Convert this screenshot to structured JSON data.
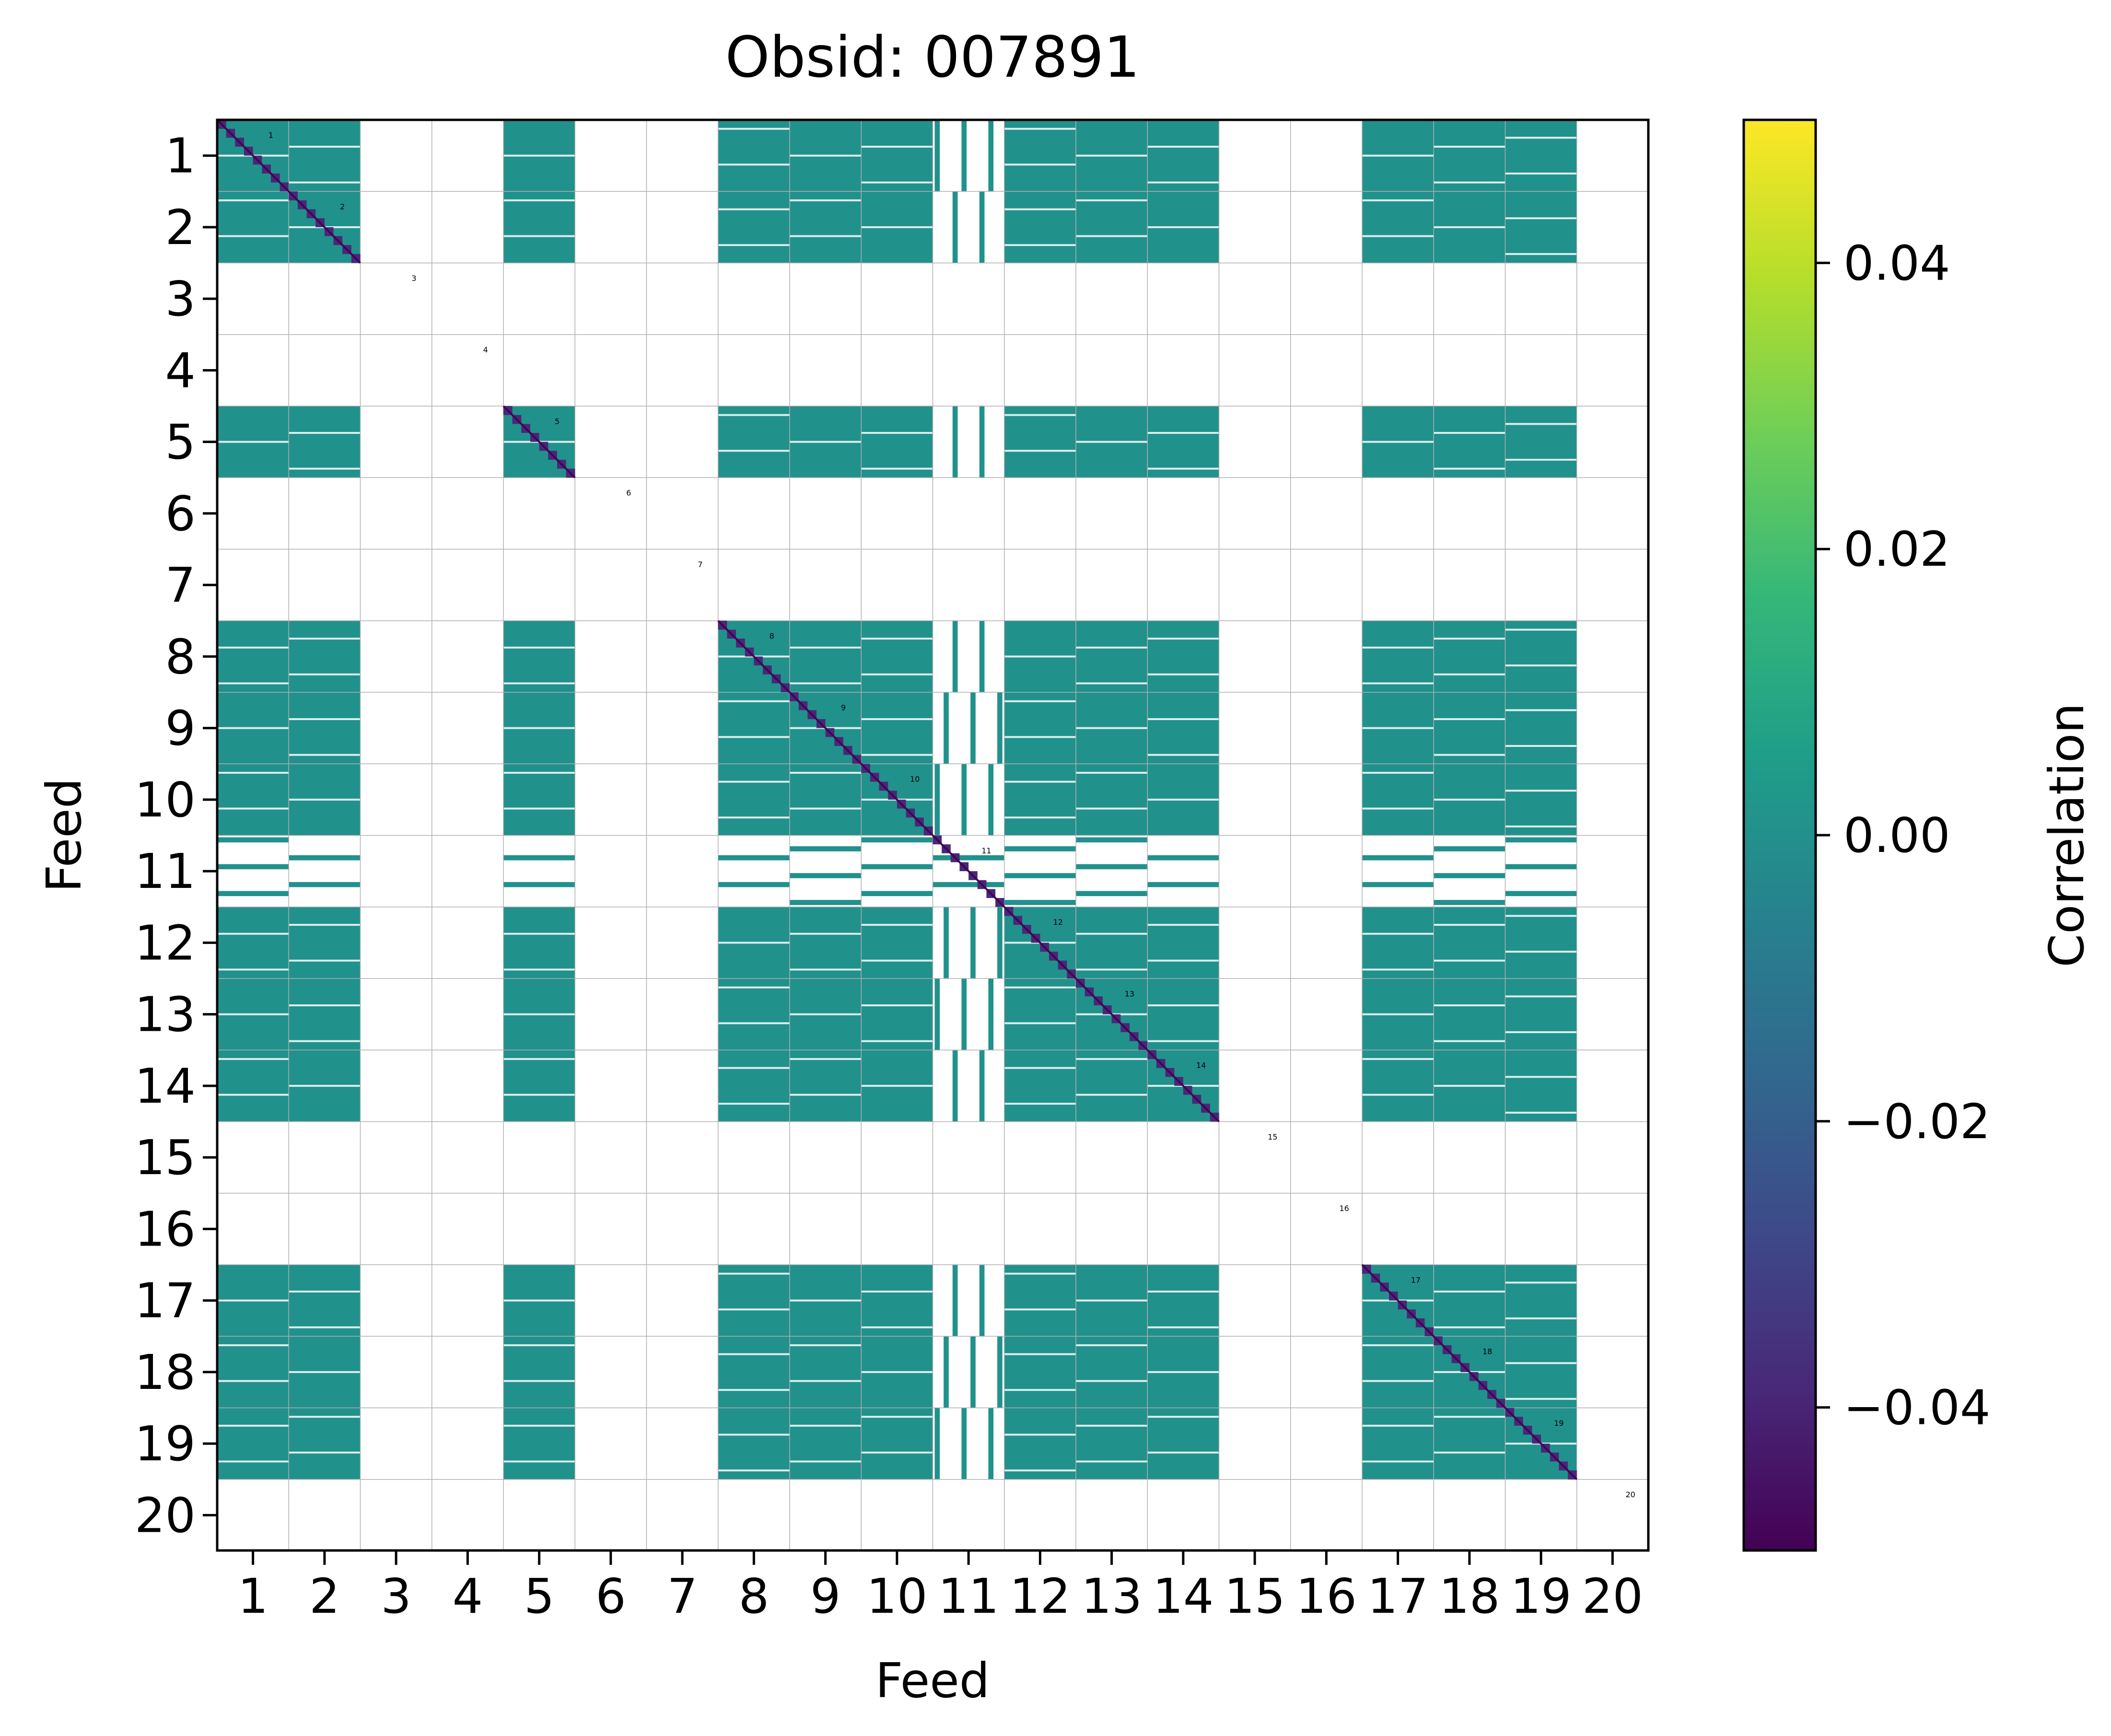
{
  "chart_data": {
    "type": "heatmap",
    "title": "Obsid: 007891",
    "xlabel": "Feed",
    "ylabel": "Feed",
    "x_tick_labels": [
      "1",
      "2",
      "3",
      "4",
      "5",
      "6",
      "7",
      "8",
      "9",
      "10",
      "11",
      "12",
      "13",
      "14",
      "15",
      "16",
      "17",
      "18",
      "19",
      "20"
    ],
    "y_tick_labels": [
      "1",
      "2",
      "3",
      "4",
      "5",
      "6",
      "7",
      "8",
      "9",
      "10",
      "11",
      "12",
      "13",
      "14",
      "15",
      "16",
      "17",
      "18",
      "19",
      "20"
    ],
    "feeds": 20,
    "sub_bands_per_feed": 8,
    "active_feeds": [
      1,
      2,
      5,
      8,
      9,
      10,
      12,
      13,
      14,
      17,
      18,
      19
    ],
    "partially_active_feeds": [
      11
    ],
    "masked_feeds": [
      3,
      4,
      6,
      7,
      15,
      16,
      20
    ],
    "diagonal_labels": [
      "1",
      "2",
      "3",
      "4",
      "5",
      "6",
      "7",
      "8",
      "9",
      "10",
      "11",
      "12",
      "13",
      "14",
      "15",
      "16",
      "17",
      "18",
      "19",
      "20"
    ],
    "colormap": "viridis",
    "masked_color": "#ffffff",
    "fill_color": "#21918c",
    "diagonal_color": "#482878",
    "colorbar": {
      "label": "Correlation",
      "range": [
        -0.05,
        0.05
      ],
      "ticks": [
        -0.04,
        -0.02,
        0.0,
        0.02,
        0.04
      ],
      "tick_labels": [
        "−0.04",
        "−0.02",
        "0.00",
        "0.02",
        "0.04"
      ],
      "colors": [
        "#440154",
        "#482878",
        "#3e4989",
        "#31688e",
        "#26828e",
        "#1f9e89",
        "#35b779",
        "#6ece58",
        "#b5de2b",
        "#fde725"
      ]
    }
  }
}
